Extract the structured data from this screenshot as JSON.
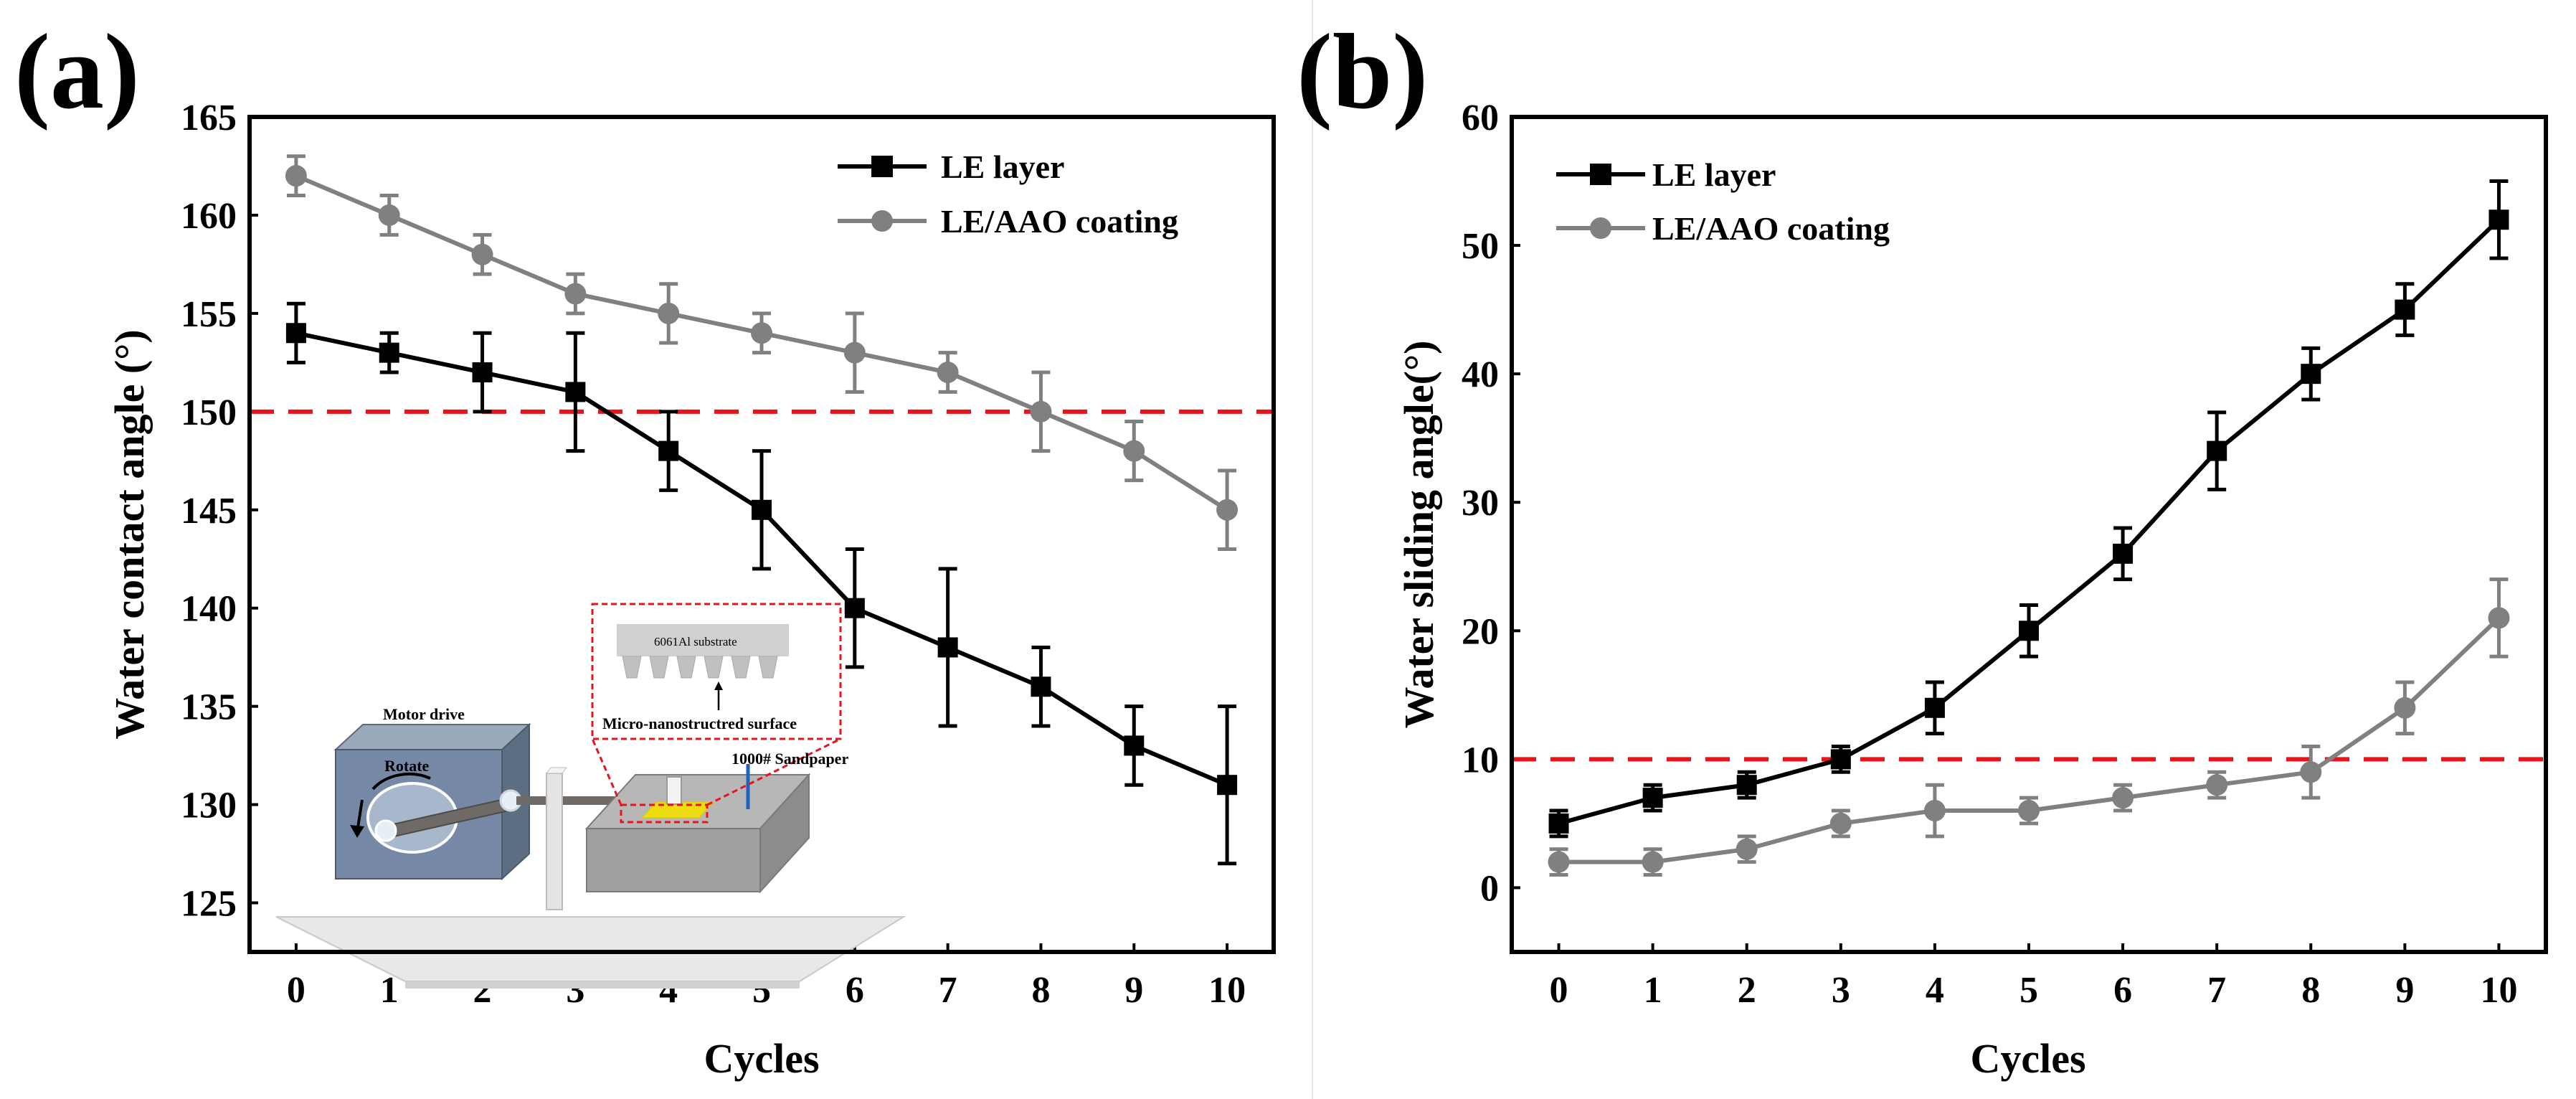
{
  "chart_data": [
    {
      "panel_label": "(a)",
      "type": "line",
      "xlabel": "Cycles",
      "ylabel": "Water contact angle (°)",
      "xlim": [
        -0.5,
        10.5
      ],
      "ylim": [
        122.5,
        165
      ],
      "xticks": [
        0,
        1,
        2,
        3,
        4,
        5,
        6,
        7,
        8,
        9,
        10
      ],
      "yticks": [
        125,
        130,
        135,
        140,
        145,
        150,
        155,
        160,
        165
      ],
      "x": [
        0,
        1,
        2,
        3,
        4,
        5,
        6,
        7,
        8,
        9,
        10
      ],
      "reference_line": {
        "y": 150,
        "color": "#e8141b",
        "style": "dashed"
      },
      "legend_position": "top-right",
      "series": [
        {
          "name": "LE layer",
          "marker": "square",
          "color": "#000000",
          "values": [
            154,
            153,
            152,
            151,
            148,
            145,
            140,
            138,
            136,
            133,
            131
          ],
          "errors": [
            1.5,
            1,
            2,
            3,
            2,
            3,
            3,
            4,
            2,
            2,
            4
          ]
        },
        {
          "name": "LE/AAO coating",
          "marker": "circle",
          "color": "#808080",
          "values": [
            162,
            160,
            158,
            156,
            155,
            154,
            153,
            152,
            150,
            148,
            145
          ],
          "errors": [
            1,
            1,
            1,
            1,
            1.5,
            1,
            2,
            1,
            2,
            1.5,
            2
          ]
        }
      ],
      "inset": {
        "motor_label": "Motor drive",
        "rotate_label": "Rotate",
        "substrate_label": "6061Al substrate",
        "surface_label": "Micro-nanostructred surface",
        "sandpaper_label": "1000# Sandpaper"
      }
    },
    {
      "panel_label": "(b)",
      "type": "line",
      "xlabel": "Cycles",
      "ylabel": "Water sliding angle(°)",
      "xlim": [
        -0.5,
        10.5
      ],
      "ylim": [
        -5,
        60
      ],
      "xticks": [
        0,
        1,
        2,
        3,
        4,
        5,
        6,
        7,
        8,
        9,
        10
      ],
      "yticks": [
        0,
        10,
        20,
        30,
        40,
        50,
        60
      ],
      "x": [
        0,
        1,
        2,
        3,
        4,
        5,
        6,
        7,
        8,
        9,
        10
      ],
      "reference_line": {
        "y": 10,
        "color": "#e8141b",
        "style": "dashed"
      },
      "legend_position": "top-left",
      "series": [
        {
          "name": "LE layer",
          "marker": "square",
          "color": "#000000",
          "values": [
            5,
            7,
            8,
            10,
            14,
            20,
            26,
            34,
            40,
            45,
            52
          ],
          "errors": [
            1,
            1,
            1,
            1,
            2,
            2,
            2,
            3,
            2,
            2,
            3
          ]
        },
        {
          "name": "LE/AAO coating",
          "marker": "circle",
          "color": "#808080",
          "values": [
            2,
            2,
            3,
            5,
            6,
            6,
            7,
            8,
            9,
            14,
            21
          ],
          "errors": [
            1,
            1,
            1,
            1,
            2,
            1,
            1,
            1,
            2,
            2,
            3
          ]
        }
      ]
    }
  ]
}
